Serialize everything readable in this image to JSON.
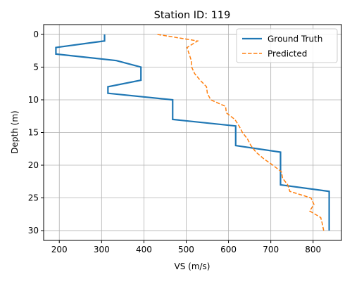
{
  "chart_data": {
    "type": "line",
    "title": "Station ID: 119",
    "xlabel": "VS (m/s)",
    "ylabel": "Depth (m)",
    "xlim": [
      163,
      867
    ],
    "ylim": [
      31.5,
      -1.5
    ],
    "y_inverted": true,
    "grid": true,
    "legend_position": "top-right",
    "xticks": [
      200,
      300,
      400,
      500,
      600,
      700,
      800
    ],
    "yticks": [
      0,
      5,
      10,
      15,
      20,
      25,
      30
    ],
    "series": [
      {
        "name": "Ground Truth",
        "color": "#1f77b4",
        "style": "solid",
        "points": [
          [
            307,
            0
          ],
          [
            307,
            1
          ],
          [
            192,
            2
          ],
          [
            192,
            3
          ],
          [
            335,
            4
          ],
          [
            393,
            5
          ],
          [
            393,
            7
          ],
          [
            315,
            8
          ],
          [
            315,
            9
          ],
          [
            468,
            10
          ],
          [
            468,
            13
          ],
          [
            617,
            14
          ],
          [
            617,
            17
          ],
          [
            723,
            18
          ],
          [
            723,
            23
          ],
          [
            838,
            24
          ],
          [
            838,
            30
          ]
        ]
      },
      {
        "name": "Predicted",
        "color": "#ff7f0e",
        "style": "dashed",
        "points": [
          [
            432,
            0
          ],
          [
            527,
            1
          ],
          [
            502,
            2
          ],
          [
            507,
            3
          ],
          [
            512,
            4
          ],
          [
            513,
            5
          ],
          [
            520,
            6
          ],
          [
            533,
            7
          ],
          [
            548,
            8
          ],
          [
            550,
            9
          ],
          [
            558,
            10
          ],
          [
            593,
            11
          ],
          [
            595,
            12
          ],
          [
            615,
            13
          ],
          [
            625,
            14
          ],
          [
            633,
            15
          ],
          [
            645,
            16
          ],
          [
            653,
            17
          ],
          [
            665,
            18
          ],
          [
            683,
            19
          ],
          [
            705,
            20
          ],
          [
            725,
            21
          ],
          [
            728,
            22
          ],
          [
            740,
            23
          ],
          [
            745,
            24
          ],
          [
            795,
            25
          ],
          [
            802,
            26
          ],
          [
            792,
            27
          ],
          [
            818,
            28
          ],
          [
            822,
            29
          ],
          [
            825,
            30
          ]
        ]
      }
    ]
  }
}
